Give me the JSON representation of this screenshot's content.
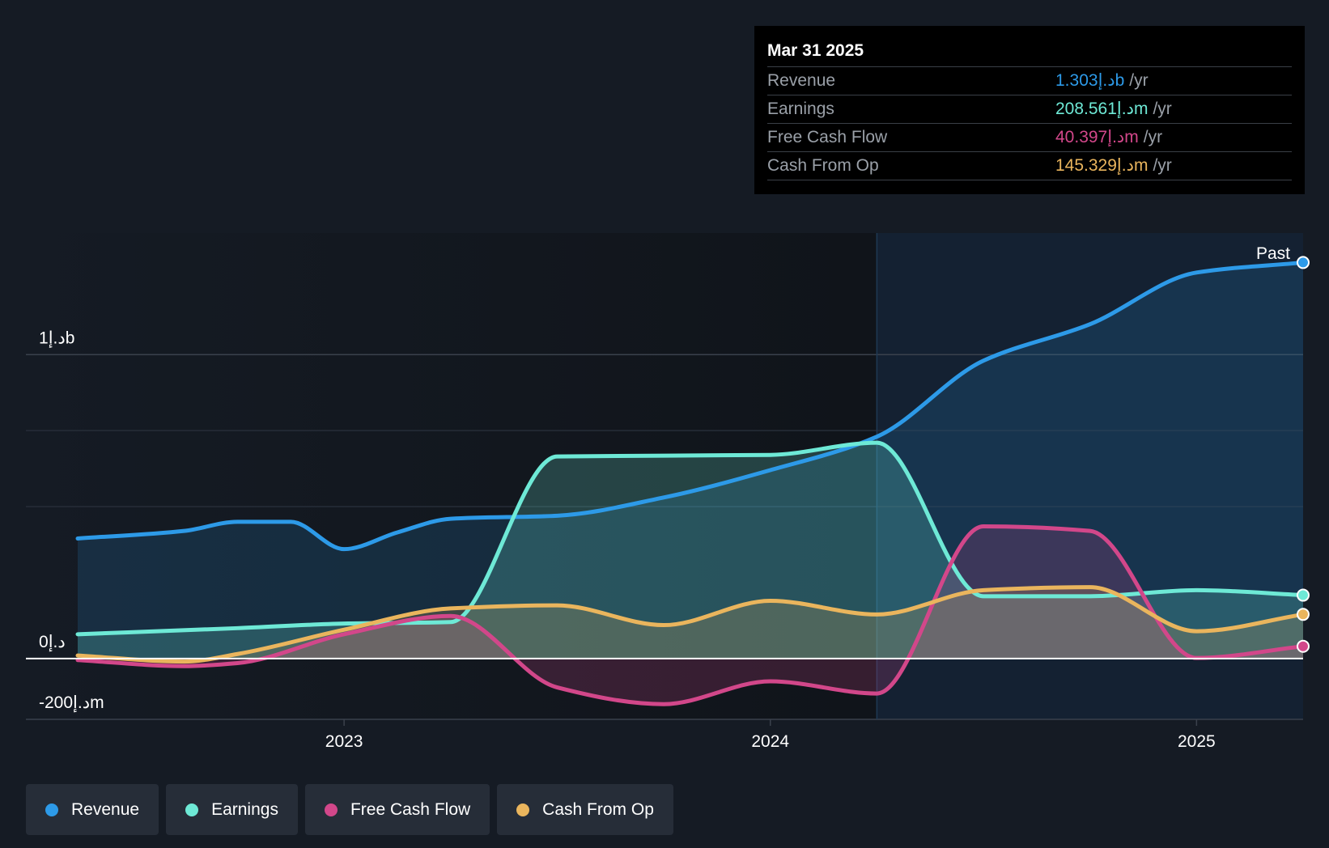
{
  "tooltip": {
    "date": "Mar 31 2025",
    "rows": [
      {
        "label": "Revenue",
        "value": "1.303د.إb",
        "unit": "/yr",
        "color": "#2d9ae8"
      },
      {
        "label": "Earnings",
        "value": "208.561د.إm",
        "unit": "/yr",
        "color": "#6ee9d6"
      },
      {
        "label": "Free Cash Flow",
        "value": "40.397د.إm",
        "unit": "/yr",
        "color": "#d2478a"
      },
      {
        "label": "Cash From Op",
        "value": "145.329د.إm",
        "unit": "/yr",
        "color": "#eab55d"
      }
    ]
  },
  "legend": [
    {
      "label": "Revenue",
      "color": "#2d9ae8"
    },
    {
      "label": "Earnings",
      "color": "#6ee9d6"
    },
    {
      "label": "Free Cash Flow",
      "color": "#d2478a"
    },
    {
      "label": "Cash From Op",
      "color": "#eab55d"
    }
  ],
  "chart_data": {
    "type": "area",
    "y_tick_labels": [
      "1د.إb",
      "0د.إ",
      "-200د.إm"
    ],
    "y_ticks": [
      1000,
      0,
      -200
    ],
    "ylim": [
      -200,
      1400
    ],
    "xlim": [
      2022.375,
      2025.25
    ],
    "x_ticks": [
      2023,
      2024,
      2025
    ],
    "x_tick_labels": [
      "2023",
      "2024",
      "2025"
    ],
    "past_label": "Past",
    "past_boundary": 2024.25,
    "grid": true,
    "series": [
      {
        "name": "Revenue",
        "color": "#2d9ae8",
        "x": [
          2022.375,
          2022.625,
          2022.75,
          2022.875,
          2023.0,
          2023.125,
          2023.25,
          2023.5,
          2023.75,
          2024.0,
          2024.25,
          2024.5,
          2024.75,
          2025.0,
          2025.25
        ],
        "y": [
          395,
          420,
          450,
          450,
          360,
          415,
          460,
          470,
          530,
          620,
          730,
          980,
          1100,
          1270,
          1303
        ]
      },
      {
        "name": "Earnings",
        "color": "#6ee9d6",
        "x": [
          2022.375,
          2022.75,
          2023.0,
          2023.25,
          2023.5,
          2024.0,
          2024.25,
          2024.5,
          2024.75,
          2025.0,
          2025.25
        ],
        "y": [
          80,
          100,
          115,
          120,
          665,
          670,
          710,
          205,
          205,
          225,
          208.561
        ]
      },
      {
        "name": "Free Cash Flow",
        "color": "#d2478a",
        "x": [
          2022.375,
          2022.625,
          2022.75,
          2023.0,
          2023.25,
          2023.5,
          2023.75,
          2024.0,
          2024.25,
          2024.5,
          2024.75,
          2025.0,
          2025.25
        ],
        "y": [
          -5,
          -25,
          -15,
          80,
          140,
          -95,
          -150,
          -75,
          -115,
          435,
          420,
          2,
          40.397
        ]
      },
      {
        "name": "Cash From Op",
        "color": "#eab55d",
        "x": [
          2022.375,
          2022.625,
          2022.75,
          2023.0,
          2023.25,
          2023.5,
          2023.75,
          2024.0,
          2024.25,
          2024.5,
          2024.75,
          2025.0,
          2025.25
        ],
        "y": [
          10,
          -10,
          15,
          95,
          165,
          175,
          110,
          190,
          145,
          225,
          235,
          90,
          145.329
        ]
      }
    ]
  }
}
